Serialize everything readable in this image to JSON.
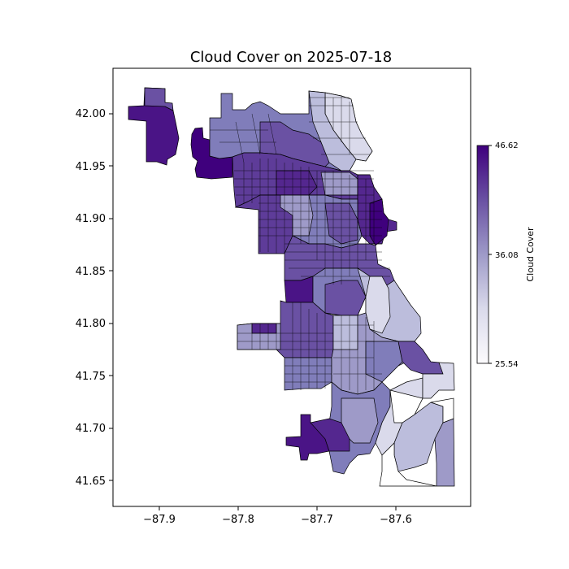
{
  "title": "Cloud Cover on 2025-07-18",
  "x_ticks": [
    "−87.9",
    "−87.8",
    "−87.7",
    "−87.6"
  ],
  "y_ticks": [
    "42.00",
    "41.95",
    "41.90",
    "41.85",
    "41.80",
    "41.75",
    "41.70",
    "41.65"
  ],
  "colorbar": {
    "label": "Cloud Cover",
    "max_label": "46.62",
    "mid_label": "36.08",
    "min_label": "25.54",
    "colormap": "Purples",
    "color_low": "#fcfbfd",
    "color_mid": "#9e9ac8",
    "color_high": "#3f007d"
  },
  "map": {
    "region": "Chicago community areas / census tracts",
    "edge_color": "#000000"
  }
}
